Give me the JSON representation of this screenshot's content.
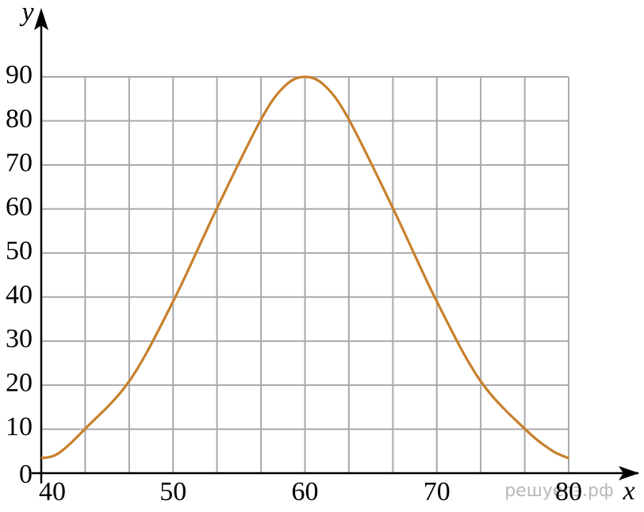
{
  "chart_data": {
    "type": "line",
    "x_label": "x",
    "y_label": "y",
    "watermark": "решуегэ.рф",
    "series": [
      {
        "color": "#c8802c",
        "x": [
          40,
          41.3,
          43.3,
          46.7,
          50,
          53.3,
          56.7,
          58.5,
          60,
          61.5,
          63.3,
          66.7,
          70,
          73.3,
          76.7,
          78.7,
          80
        ],
        "values": [
          3.4,
          4.5,
          10,
          21,
          39,
          60,
          80.5,
          88,
          90,
          88,
          80.5,
          60,
          39,
          21,
          10,
          5.2,
          3.4
        ]
      }
    ],
    "xlim": [
      40,
      80
    ],
    "ylim": [
      0,
      90
    ],
    "xticks": [
      40,
      50,
      60,
      70,
      80
    ],
    "yticks": [
      0,
      10,
      20,
      30,
      40,
      50,
      60,
      70,
      80,
      90
    ],
    "xgrid": [
      40,
      43.33,
      46.67,
      50,
      53.33,
      56.67,
      60,
      63.33,
      66.67,
      70,
      73.33,
      76.67,
      80
    ],
    "grid": true
  }
}
